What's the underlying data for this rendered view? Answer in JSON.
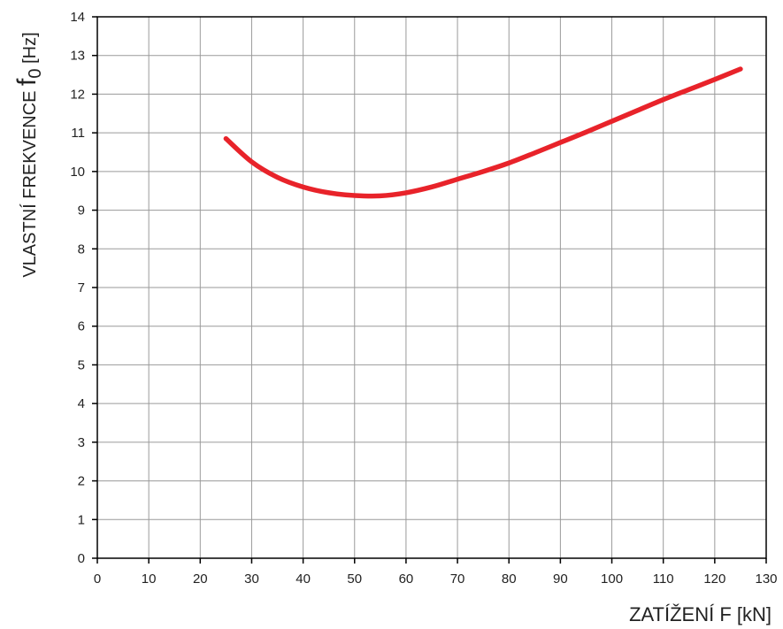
{
  "chart_data": {
    "type": "line",
    "xlabel_main": "ZATÍŽENÍ F ",
    "xlabel_unit": "[kN]",
    "ylabel_main": "VLASTNÍ FREKVENCE ",
    "ylabel_symbol": "f",
    "ylabel_subscript": "0",
    "ylabel_unit": " [Hz]",
    "xlim": [
      0,
      130
    ],
    "ylim": [
      0,
      14
    ],
    "x_ticks": [
      0,
      10,
      20,
      30,
      40,
      50,
      60,
      70,
      80,
      90,
      100,
      110,
      120,
      130
    ],
    "y_ticks": [
      0,
      1,
      2,
      3,
      4,
      5,
      6,
      7,
      8,
      9,
      10,
      11,
      12,
      13,
      14
    ],
    "x_tick_labels": [
      "0",
      "10",
      "20",
      "30",
      "40",
      "50",
      "60",
      "70",
      "80",
      "90",
      "100",
      "110",
      "120",
      "130"
    ],
    "y_tick_labels": [
      "0",
      "1",
      "2",
      "3",
      "4",
      "5",
      "6",
      "7",
      "8",
      "9",
      "10",
      "11",
      "12",
      "13",
      "14"
    ],
    "grid": true,
    "series": [
      {
        "color": "#e8232a",
        "x": [
          25,
          30,
          35,
          40,
          45,
          50,
          55,
          60,
          65,
          70,
          75,
          80,
          85,
          90,
          95,
          100,
          105,
          110,
          115,
          120,
          125
        ],
        "y": [
          10.85,
          10.25,
          9.85,
          9.6,
          9.45,
          9.38,
          9.37,
          9.45,
          9.6,
          9.8,
          10.0,
          10.22,
          10.48,
          10.75,
          11.02,
          11.3,
          11.58,
          11.86,
          12.12,
          12.38,
          12.65
        ]
      }
    ]
  }
}
